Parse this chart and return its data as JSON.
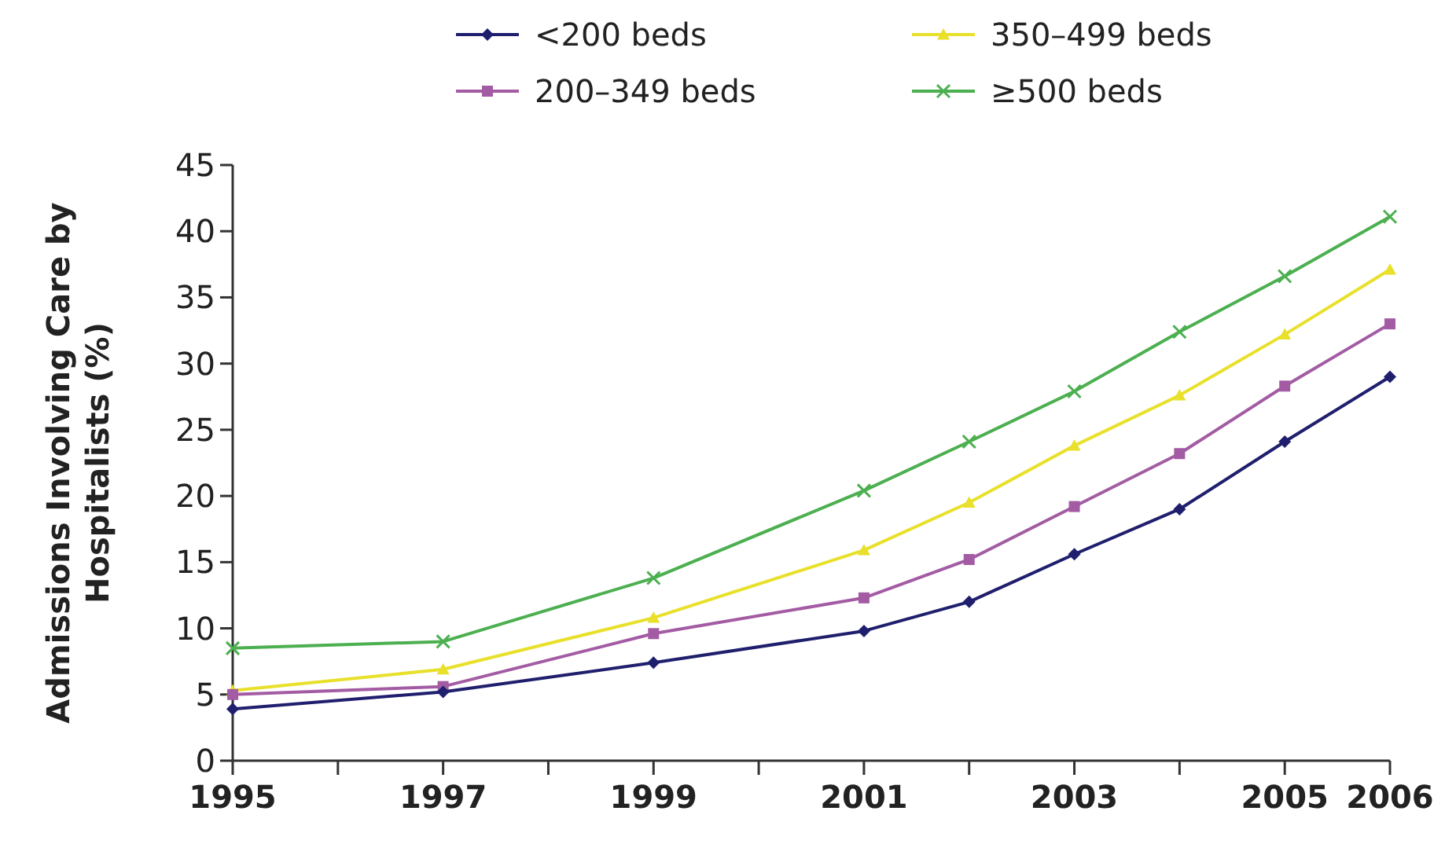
{
  "chart_data": {
    "type": "line",
    "ylabel": "Admissions Involving Care by Hospitalists (%)",
    "x": [
      1995,
      1997,
      1999,
      2001,
      2002,
      2003,
      2004,
      2005,
      2006
    ],
    "xlim": [
      1995,
      2006
    ],
    "xticks": [
      1995,
      {
        "value": 1996,
        "label": null
      },
      1997,
      {
        "value": 1998,
        "label": null
      },
      1999,
      {
        "value": 2000,
        "label": null
      },
      2001,
      {
        "value": 2002,
        "label": null
      },
      2003,
      {
        "value": 2004,
        "label": null
      },
      2005,
      2006
    ],
    "ylim": [
      0,
      45
    ],
    "yticks": [
      0,
      5,
      10,
      15,
      20,
      25,
      30,
      35,
      40,
      45
    ],
    "grid": false,
    "legend": "top",
    "line_style": "solid",
    "series": [
      {
        "name": "<200 beds",
        "color": "#1f1f6e",
        "marker": "diamond",
        "values": [
          3.9,
          5.2,
          7.4,
          9.8,
          12.0,
          15.6,
          19.0,
          24.1,
          29.0
        ]
      },
      {
        "name": "200–349 beds",
        "color": "#a35ca3",
        "marker": "square",
        "values": [
          5.0,
          5.6,
          9.6,
          12.3,
          15.2,
          19.2,
          23.2,
          28.3,
          33.0
        ]
      },
      {
        "name": "350–499 beds",
        "color": "#e8e02a",
        "marker": "triangle",
        "values": [
          5.3,
          6.9,
          10.8,
          15.9,
          19.5,
          23.8,
          27.6,
          32.2,
          37.1
        ]
      },
      {
        "name": "≥500 beds",
        "color": "#4caf50",
        "marker": "cross",
        "values": [
          8.5,
          9.0,
          13.8,
          20.4,
          24.1,
          27.9,
          32.4,
          36.6,
          41.1
        ]
      }
    ]
  }
}
